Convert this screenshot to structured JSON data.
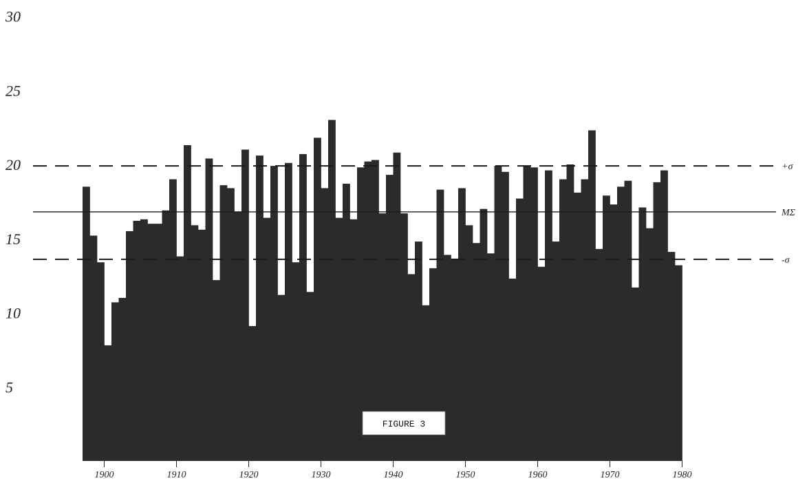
{
  "chart_data": {
    "type": "bar",
    "title": "",
    "xlabel": "",
    "ylabel": "",
    "ylim": [
      0,
      30
    ],
    "grid": false,
    "bar_color": "#2b2b2b",
    "y_ticks": [
      "30",
      "25",
      "20",
      "15",
      "10",
      "5"
    ],
    "x_ticks": [
      "1900",
      "1910",
      "1920",
      "1930",
      "1940",
      "1950",
      "1960",
      "1970",
      "1980"
    ],
    "x": [
      1897,
      1898,
      1899,
      1900,
      1901,
      1902,
      1903,
      1904,
      1905,
      1906,
      1907,
      1908,
      1909,
      1910,
      1911,
      1912,
      1913,
      1914,
      1915,
      1916,
      1917,
      1918,
      1919,
      1920,
      1921,
      1922,
      1923,
      1924,
      1925,
      1926,
      1927,
      1928,
      1929,
      1930,
      1931,
      1932,
      1933,
      1934,
      1935,
      1936,
      1937,
      1938,
      1939,
      1940,
      1941,
      1942,
      1943,
      1944,
      1945,
      1946,
      1947,
      1948,
      1949,
      1950,
      1951,
      1952,
      1953,
      1954,
      1955,
      1956,
      1957,
      1958,
      1959,
      1960,
      1961,
      1962,
      1963,
      1964,
      1965,
      1966,
      1967,
      1968,
      1969,
      1970,
      1971,
      1972,
      1973,
      1974,
      1975,
      1976,
      1977,
      1978,
      1979
    ],
    "values": [
      18.5,
      15.2,
      13.4,
      7.8,
      10.7,
      11.0,
      15.5,
      16.2,
      16.3,
      16.0,
      16.0,
      16.9,
      19.0,
      13.8,
      21.3,
      15.9,
      15.6,
      20.4,
      12.2,
      18.6,
      18.4,
      16.8,
      21.0,
      9.1,
      20.6,
      16.4,
      19.9,
      11.2,
      20.1,
      13.4,
      20.7,
      11.4,
      21.8,
      18.4,
      23.0,
      16.4,
      18.7,
      16.3,
      19.8,
      20.2,
      20.3,
      16.7,
      19.3,
      20.8,
      16.7,
      12.6,
      14.8,
      10.5,
      13.0,
      18.3,
      13.9,
      13.6,
      18.4,
      15.9,
      14.7,
      17.0,
      14.0,
      19.9,
      19.5,
      12.3,
      17.7,
      19.9,
      19.8,
      13.1,
      19.6,
      14.8,
      19.0,
      20.0,
      18.1,
      19.0,
      22.3,
      14.3,
      17.9,
      17.3,
      18.5,
      18.9,
      11.7,
      17.1,
      15.7,
      18.8,
      19.6,
      14.1,
      13.2
    ],
    "reference_lines": [
      {
        "label": "+σ",
        "value": 19.9,
        "style": "dashed"
      },
      {
        "label": "MΣ",
        "value": 16.8,
        "style": "solid"
      },
      {
        "label": "-σ",
        "value": 13.6,
        "style": "dashed"
      }
    ],
    "annotation": "FIGURE 3"
  }
}
